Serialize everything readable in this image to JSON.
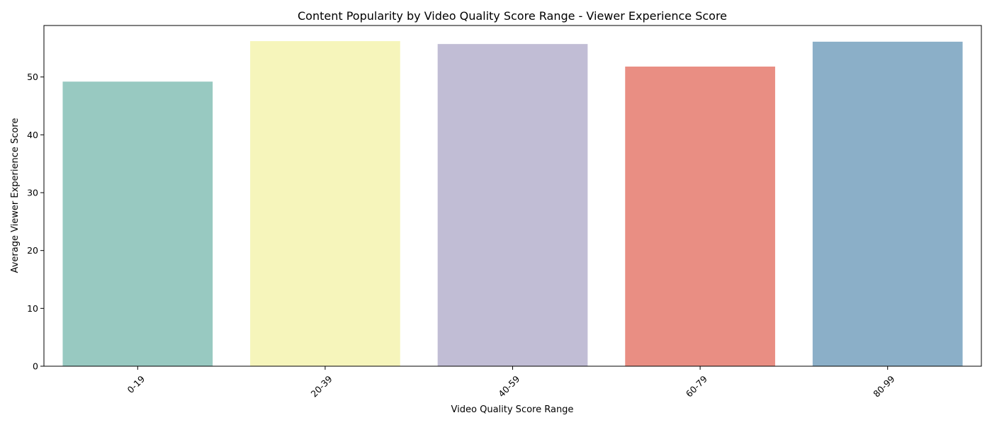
{
  "chart_data": {
    "type": "bar",
    "title": "Content Popularity by Video Quality Score Range - Viewer Experience Score",
    "xlabel": "Video Quality Score Range",
    "ylabel": "Average Viewer Experience Score",
    "categories": [
      "0-19",
      "20-39",
      "40-59",
      "60-79",
      "80-99"
    ],
    "values": [
      49.2,
      56.2,
      55.7,
      51.8,
      56.1
    ],
    "colors": [
      "#98c9c1",
      "#f6f5bb",
      "#c1bdd5",
      "#e98e83",
      "#8bafc8"
    ],
    "ylim": [
      0,
      58.9
    ],
    "yticks": [
      0,
      10,
      20,
      30,
      40,
      50
    ],
    "xtick_rotation_degrees": 45,
    "grid": false,
    "legend": "none"
  }
}
